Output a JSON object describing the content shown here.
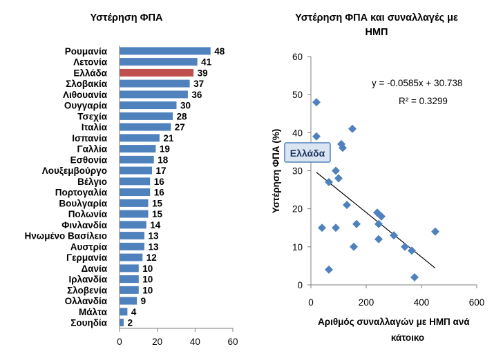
{
  "chart_data": [
    {
      "type": "bar",
      "orientation": "horizontal",
      "title": "Υστέρηση ΦΠΑ",
      "categories": [
        "Ρουμανία",
        "Λετονία",
        "Ελλάδα",
        "Σλοβακία",
        "Λιθουανία",
        "Ουγγαρία",
        "Τσεχία",
        "Ιταλία",
        "Ισπανία",
        "Γαλλία",
        "Εσθονία",
        "Λουξεμβούργο",
        "Βέλγιο",
        "Πορτογαλία",
        "Βουλγαρία",
        "Πολωνία",
        "Φινλανδία",
        "Ηνωμένο Βασίλειο",
        "Αυστρία",
        "Γερμανία",
        "Δανία",
        "Ιρλανδία",
        "Σλοβενία",
        "Ολλανδία",
        "Μάλτα",
        "Σουηδία"
      ],
      "values": [
        48,
        41,
        39,
        37,
        36,
        30,
        28,
        27,
        21,
        19,
        18,
        17,
        16,
        16,
        15,
        15,
        14,
        13,
        13,
        12,
        10,
        10,
        10,
        9,
        4,
        2
      ],
      "highlight_category": "Ελλάδα",
      "colors": {
        "bar": "#4f81bd",
        "highlight": "#c0504d"
      },
      "xlim": [
        0,
        60
      ],
      "xticks": [
        0,
        20,
        40,
        60
      ],
      "grid": false
    },
    {
      "type": "scatter",
      "title": "Υστέρηση ΦΠΑ και συναλλαγές με ΗΜΠ",
      "xlabel": "Αριθμός συναλλαγών με ΗΜΠ ανά κάτοικο",
      "ylabel": "Υστέρηση ΦΠΑ (%)",
      "xlim": [
        0,
        600
      ],
      "ylim": [
        0,
        60
      ],
      "xticks": [
        0,
        200,
        400,
        600
      ],
      "yticks": [
        0,
        10,
        20,
        30,
        40,
        50,
        60
      ],
      "points": [
        {
          "x": 20,
          "y": 48
        },
        {
          "x": 20,
          "y": 39
        },
        {
          "x": 150,
          "y": 41
        },
        {
          "x": 110,
          "y": 37
        },
        {
          "x": 115,
          "y": 36
        },
        {
          "x": 90,
          "y": 30
        },
        {
          "x": 100,
          "y": 28
        },
        {
          "x": 65,
          "y": 27
        },
        {
          "x": 130,
          "y": 21
        },
        {
          "x": 240,
          "y": 19
        },
        {
          "x": 245,
          "y": 16
        },
        {
          "x": 255,
          "y": 18
        },
        {
          "x": 165,
          "y": 16
        },
        {
          "x": 40,
          "y": 15
        },
        {
          "x": 90,
          "y": 15
        },
        {
          "x": 245,
          "y": 12
        },
        {
          "x": 300,
          "y": 13
        },
        {
          "x": 155,
          "y": 10
        },
        {
          "x": 340,
          "y": 10
        },
        {
          "x": 365,
          "y": 9
        },
        {
          "x": 450,
          "y": 14
        },
        {
          "x": 65,
          "y": 4
        },
        {
          "x": 375,
          "y": 2
        }
      ],
      "trendline": {
        "slope": -0.0585,
        "intercept": 30.738,
        "x_range": [
          20,
          450
        ]
      },
      "equation_text": "y = -0.0585x + 30.738",
      "r2_text": "R² = 0.3299",
      "annotation": {
        "text": "Ελλάδα",
        "x": 20,
        "y": 39
      },
      "colors": {
        "marker": "#4f81bd",
        "trendline": "#000000",
        "annotation_fill": "#dbe5f1",
        "annotation_border": "#4f81bd"
      },
      "grid": false
    }
  ]
}
